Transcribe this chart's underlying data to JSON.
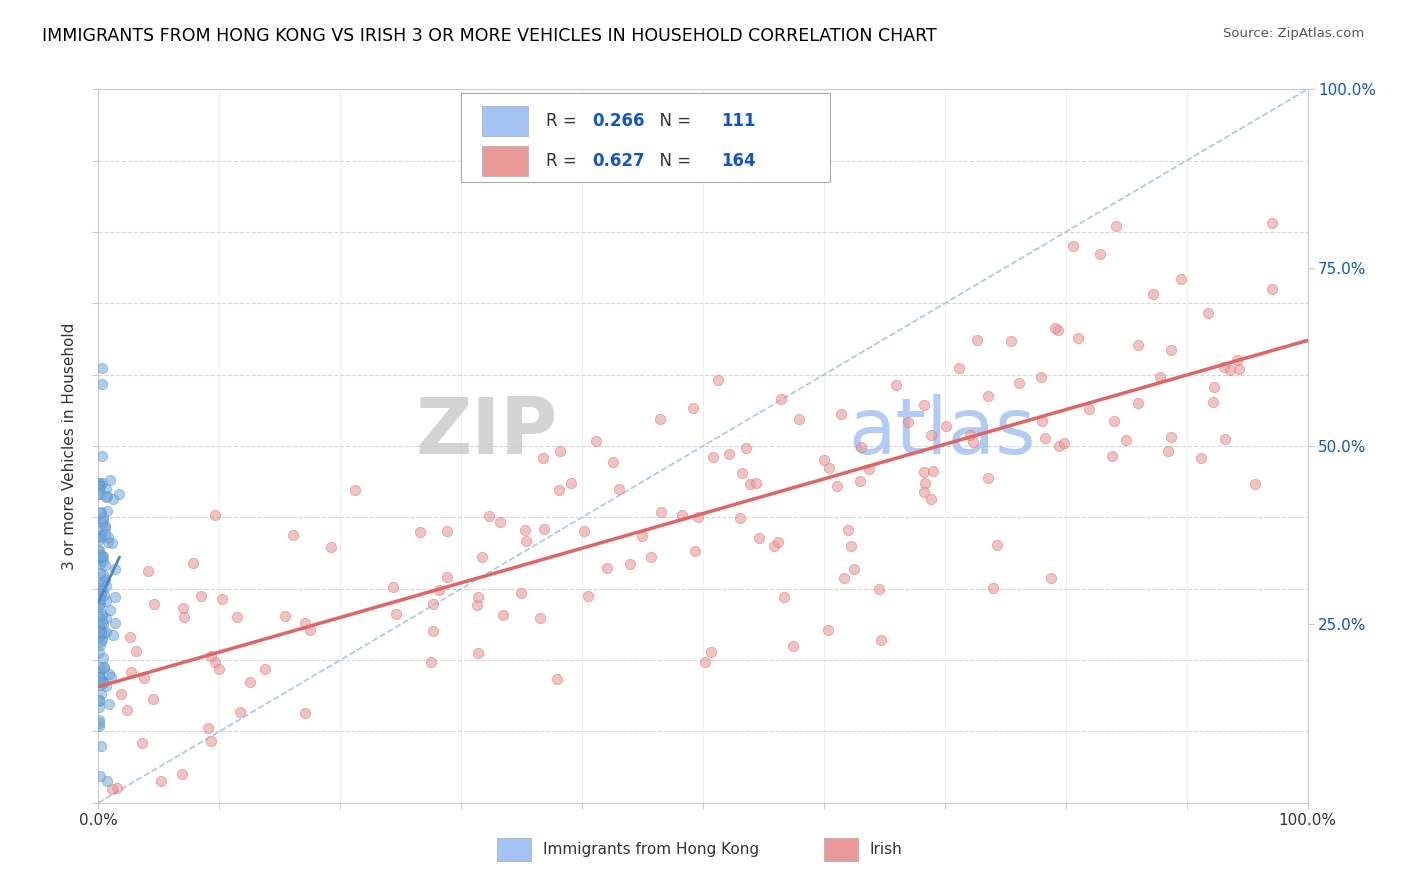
{
  "title": "IMMIGRANTS FROM HONG KONG VS IRISH 3 OR MORE VEHICLES IN HOUSEHOLD CORRELATION CHART",
  "source": "Source: ZipAtlas.com",
  "ylabel": "3 or more Vehicles in Household",
  "hk_R": 0.266,
  "hk_N": 111,
  "irish_R": 0.627,
  "irish_N": 164,
  "hk_color": "#6fa8dc",
  "irish_color": "#ea9999",
  "hk_edge_color": "#4a86c8",
  "irish_edge_color": "#e06666",
  "hk_legend_color": "#a4c2f4",
  "irish_legend_color": "#ea9999",
  "background_color": "#ffffff",
  "grid_color": "#cccccc",
  "title_color": "#000000",
  "watermark_zip_color": "#d0d0d0",
  "watermark_atlas_color": "#a4c2f4",
  "hk_line_color": "#4a86c8",
  "irish_line_color": "#e06666",
  "diag_color": "#a0c0e8",
  "right_ytick_color": "#1155cc",
  "legend_R_N_color": "#1155cc"
}
